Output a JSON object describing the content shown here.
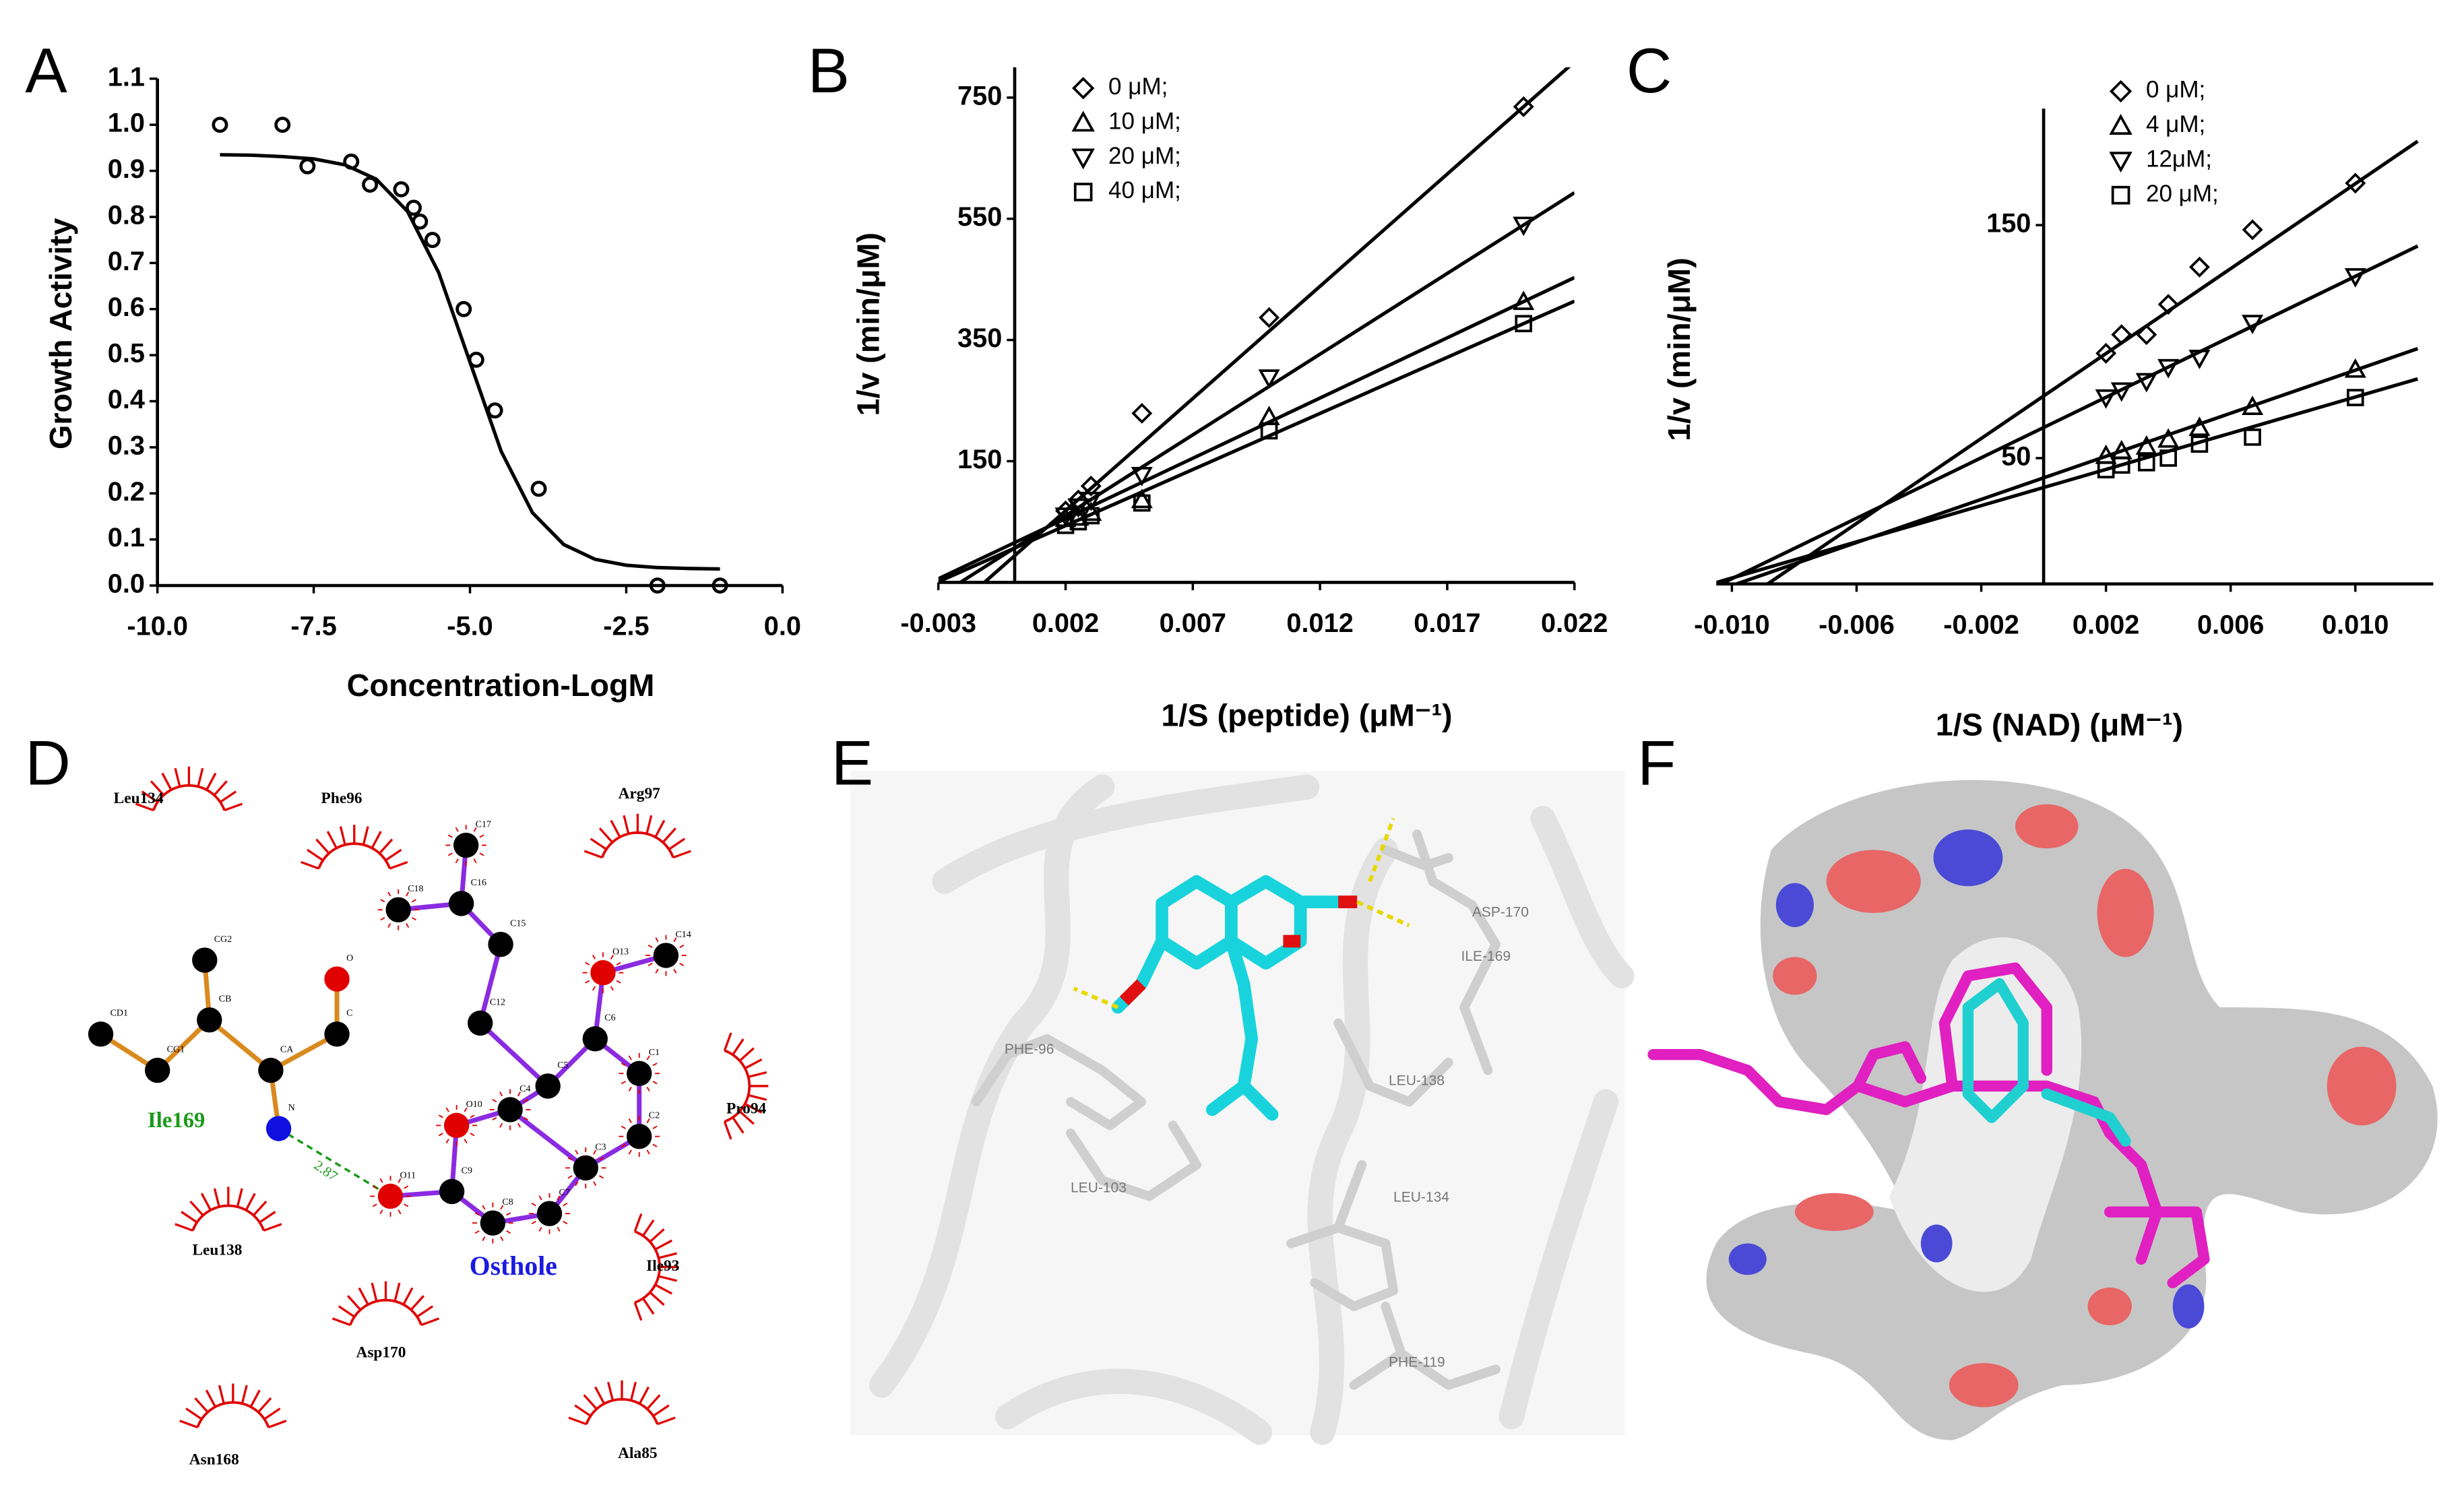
{
  "chart_data": [
    {
      "type": "scatter",
      "panel_label": "A",
      "x_label": "Concentration-LogM",
      "y_label": "Growth Activity",
      "y_axis_position": "left",
      "color": "#000000",
      "marker": "circle",
      "x": [
        -9,
        -8,
        -7.6,
        -6.9,
        -6.6,
        -6.1,
        -5.9,
        -5.8,
        -5.6,
        -5.1,
        -4.9,
        -4.6,
        -3.9,
        -2,
        -1
      ],
      "values": [
        1.0,
        1.0,
        0.91,
        0.92,
        0.87,
        0.86,
        0.82,
        0.79,
        0.75,
        0.6,
        0.49,
        0.38,
        0.21,
        0,
        0
      ],
      "fit_x": [
        -9,
        -8.5,
        -8,
        -7.5,
        -7,
        -6.5,
        -6,
        -5.5,
        -5,
        -4.5,
        -4,
        -3.5,
        -3,
        -2.5,
        -2,
        -1.5,
        -1
      ],
      "fit_values": [
        0.935,
        0.934,
        0.931,
        0.926,
        0.913,
        0.882,
        0.812,
        0.679,
        0.485,
        0.291,
        0.158,
        0.089,
        0.057,
        0.044,
        0.039,
        0.037,
        0.036
      ],
      "xlim": [
        -10,
        0
      ],
      "xticks": [
        {
          "value": -10,
          "label": "-10.0"
        },
        -7.5,
        {
          "value": -5,
          "label": "-5.0"
        },
        -2.5,
        {
          "value": 0,
          "label": "0.0"
        }
      ],
      "ylim": [
        0,
        1.1
      ],
      "yticks": [
        {
          "value": 0,
          "label": "0.0"
        },
        0.1,
        0.2,
        0.3,
        0.4,
        0.5,
        0.6,
        0.7,
        0.8,
        0.9,
        {
          "value": 1,
          "label": "1.0"
        },
        1.1
      ]
    },
    {
      "type": "scatter",
      "panel_label": "B",
      "x_label": "1/S (peptide) (μM⁻¹)",
      "y_label": "1/v (min/μM)",
      "y_axis_position": "zero",
      "legend": "upper-left",
      "x": [
        0.002,
        0.0025,
        0.003,
        0.005,
        0.01,
        0.02
      ],
      "series": [
        {
          "name": "0 μM;",
          "marker": "diamond",
          "color": "#000000",
          "values": [
            68,
            86,
            109,
            229,
            387,
            735
          ],
          "fit_x": [
            -0.003,
            0.022
          ],
          "fit_values": [
            -117,
            809
          ]
        },
        {
          "name": "10 μM;",
          "marker": "triangle",
          "color": "#000000",
          "values": [
            55,
            57,
            65,
            86,
            223,
            413
          ],
          "fit_x": [
            -0.003,
            0.022
          ],
          "fit_values": [
            -44,
            453
          ]
        },
        {
          "name": "20 μM;",
          "marker": "triangle-down",
          "color": "#000000",
          "values": [
            60,
            75,
            86,
            127,
            288,
            540
          ],
          "fit_x": [
            -0.003,
            0.022
          ],
          "fit_values": [
            -73,
            593
          ]
        },
        {
          "name": "40 μM;",
          "marker": "square",
          "color": "#000000",
          "values": [
            44,
            50,
            60,
            81,
            200,
            377
          ],
          "fit_x": [
            -0.003,
            0.022
          ],
          "fit_values": [
            -49,
            414
          ]
        }
      ],
      "xlim": [
        -0.003,
        0.022
      ],
      "xticks": [
        -0.003,
        0.002,
        0.007,
        0.012,
        0.017,
        0.022
      ],
      "ylim": [
        -50,
        800
      ],
      "yticks": [
        150,
        350,
        550,
        750
      ]
    },
    {
      "type": "scatter",
      "panel_label": "C",
      "x_label": "1/S (NAD) (μM⁻¹)",
      "y_label": "1/v (min/μM)",
      "y_axis_position": "zero",
      "legend": "upper-left",
      "x": [
        0.002,
        0.0025,
        0.0033,
        0.004,
        0.005,
        0.0067,
        0.01
      ],
      "series": [
        {
          "name": "0 μM;",
          "marker": "diamond",
          "color": "#000000",
          "values": [
            95,
            103,
            103,
            116,
            132,
            148,
            168
          ],
          "fit_x": [
            -0.0105,
            0.012
          ],
          "fit_values": [
            -19,
            186
          ]
        },
        {
          "name": "4 μM;",
          "marker": "triangle",
          "color": "#000000",
          "values": [
            51,
            53,
            55,
            58,
            63,
            72,
            88
          ],
          "fit_x": [
            -0.0105,
            0.012
          ],
          "fit_values": [
            -7,
            97
          ]
        },
        {
          "name": "12μM;",
          "marker": "triangle-down",
          "color": "#000000",
          "values": [
            76,
            79,
            83,
            89,
            93,
            108,
            128
          ],
          "fit_x": [
            -0.0105,
            0.012
          ],
          "fit_values": [
            -5,
            141
          ]
        },
        {
          "name": "20 μM;",
          "marker": "square",
          "color": "#000000",
          "values": [
            45,
            47,
            48,
            50,
            56,
            59,
            76
          ],
          "fit_x": [
            -0.0105,
            0.012
          ],
          "fit_values": [
            -3.4,
            84
          ]
        }
      ],
      "xlim": [
        -0.0105,
        0.0125
      ],
      "xticks": [
        {
          "value": -0.01,
          "label": "-0.010"
        },
        -0.006,
        -0.002,
        0.002,
        0.006,
        {
          "value": 0.01,
          "label": "0.010"
        }
      ],
      "ylim": [
        -4,
        200
      ],
      "yticks": [
        50,
        150
      ]
    }
  ],
  "interaction_diagram": {
    "panel_label": "D",
    "ligand": "Osthole",
    "bonded_residue": "Ile169",
    "hbond_length": "2.87",
    "residues": [
      "Leu134",
      "Phe96",
      "Arg97",
      "Pro94",
      "Ile93",
      "Leu138",
      "Asp170",
      "Asn168",
      "Ala85"
    ],
    "atoms": [
      "C17",
      "C16",
      "C18",
      "C15",
      "C12",
      "C5",
      "C6",
      "O13",
      "C14",
      "C1",
      "C2",
      "C3",
      "C4",
      "O10",
      "C9",
      "C8",
      "C7",
      "O11",
      "CD1",
      "CG1",
      "CB",
      "CG2",
      "CA",
      "C",
      "O",
      "N"
    ]
  },
  "binding_pose": {
    "panel_label": "E",
    "residue_labels": [
      "ASP-170",
      "ILE-169",
      "PHE-96",
      "LEU-138",
      "LEU-103",
      "LEU-134",
      "PHE-119"
    ]
  },
  "surface_view": {
    "panel_label": "F"
  }
}
